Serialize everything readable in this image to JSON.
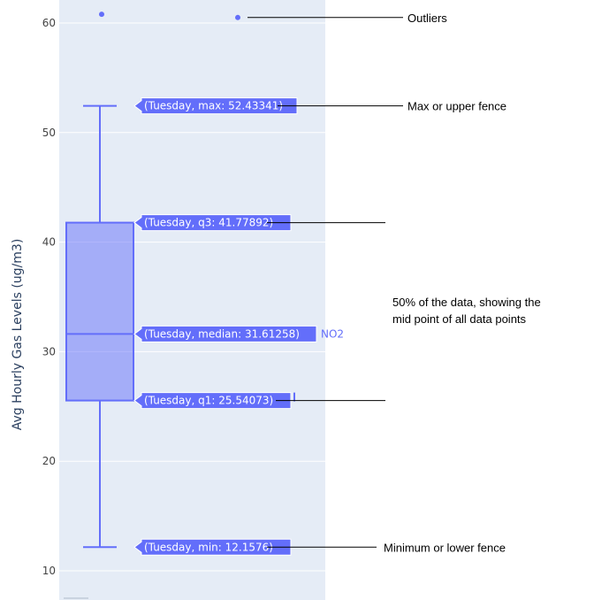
{
  "chart_data": {
    "type": "box",
    "ylabel": "Avg Hourly Gas Levels (ug/m3)",
    "xlabel": "",
    "ylim": [
      9.5,
      62
    ],
    "yticks": [
      10,
      20,
      30,
      40,
      50,
      60
    ],
    "grid": true,
    "series": [
      {
        "name": "NO2",
        "category": "Tuesday",
        "min": 12.1576,
        "q1": 25.54073,
        "median": 31.61258,
        "q3": 41.77892,
        "max": 52.43341,
        "outliers": [
          60.8,
          60.5
        ]
      }
    ],
    "hover_labels": [
      {
        "key": "max",
        "text": "(Tuesday, max: 52.43341)",
        "value": 52.43341
      },
      {
        "key": "q3",
        "text": "(Tuesday, q3: 41.77892)",
        "value": 41.77892
      },
      {
        "key": "median",
        "text": "(Tuesday, median: 31.61258)",
        "value": 31.61258
      },
      {
        "key": "q1",
        "text": "(Tuesday, q1: 25.54073)",
        "value": 25.54073
      },
      {
        "key": "min",
        "text": "(Tuesday, min: 12.1576)",
        "value": 12.1576
      }
    ],
    "annotations": [
      {
        "text": "Outliers",
        "value": 60.5
      },
      {
        "text": "Max or upper fence",
        "value": 52.43341
      },
      {
        "text": "",
        "value": 41.77892
      },
      {
        "text": "50% of the data, showing the",
        "line2": "mid point of all data points",
        "value": 31.61258
      },
      {
        "text": "",
        "value": 25.54073
      },
      {
        "text": "Minimum or lower fence",
        "value": 12.1576
      }
    ],
    "colors": {
      "box": "#636efa",
      "box_fill": "rgba(99,110,250,0.5)",
      "plot_bg": "#e5ecf6",
      "grid": "#ffffff",
      "hover_bg": "#636efa"
    }
  }
}
